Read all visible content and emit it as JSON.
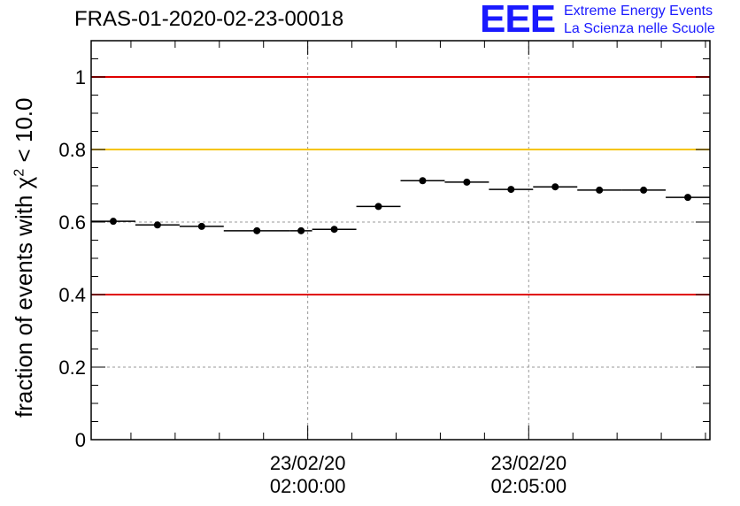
{
  "title": "FRAS-01-2020-02-23-00018",
  "logo": {
    "mark": "EEE",
    "line1": "Extreme Energy Events",
    "line2": "La Scienza nelle Scuole"
  },
  "chart_data": {
    "type": "scatter",
    "ylabel_prefix": "fraction of events with χ",
    "ylabel_sup": "2",
    "ylabel_suffix": " < 10.0",
    "ylim": [
      0,
      1.1
    ],
    "yticks": [
      0,
      0.2,
      0.4,
      0.6,
      0.8,
      1
    ],
    "ytick_labels": [
      "0",
      "0.2",
      "0.4",
      "0.6",
      "0.8",
      "1"
    ],
    "xlim_minutes": [
      -4.9,
      9.1
    ],
    "xticks_minutes": [
      0,
      5
    ],
    "xtick_labels": [
      [
        "23/02/20",
        "02:00:00"
      ],
      [
        "23/02/20",
        "02:05:00"
      ]
    ],
    "grid": true,
    "reference_lines": [
      {
        "y": 1.0,
        "color": "#e00000"
      },
      {
        "y": 0.8,
        "color": "#f5c400"
      },
      {
        "y": 0.4,
        "color": "#e00000"
      }
    ],
    "series": [
      {
        "points": [
          {
            "x_start": -4.9,
            "x_end": -3.9,
            "y": 0.602
          },
          {
            "x_start": -3.9,
            "x_end": -2.9,
            "y": 0.592
          },
          {
            "x_start": -2.9,
            "x_end": -1.9,
            "y": 0.588
          },
          {
            "x_start": -1.9,
            "x_end": -0.4,
            "y": 0.576
          },
          {
            "x_start": -0.4,
            "x_end": 0.1,
            "y": 0.576
          },
          {
            "x_start": 0.1,
            "x_end": 1.1,
            "y": 0.58
          },
          {
            "x_start": 1.1,
            "x_end": 2.1,
            "y": 0.643
          },
          {
            "x_start": 2.1,
            "x_end": 3.1,
            "y": 0.714
          },
          {
            "x_start": 3.1,
            "x_end": 4.1,
            "y": 0.71
          },
          {
            "x_start": 4.1,
            "x_end": 5.1,
            "y": 0.69
          },
          {
            "x_start": 5.1,
            "x_end": 6.1,
            "y": 0.697
          },
          {
            "x_start": 6.1,
            "x_end": 7.1,
            "y": 0.688
          },
          {
            "x_start": 7.1,
            "x_end": 8.1,
            "y": 0.688
          },
          {
            "x_start": 8.1,
            "x_end": 9.1,
            "y": 0.668
          }
        ]
      }
    ]
  }
}
